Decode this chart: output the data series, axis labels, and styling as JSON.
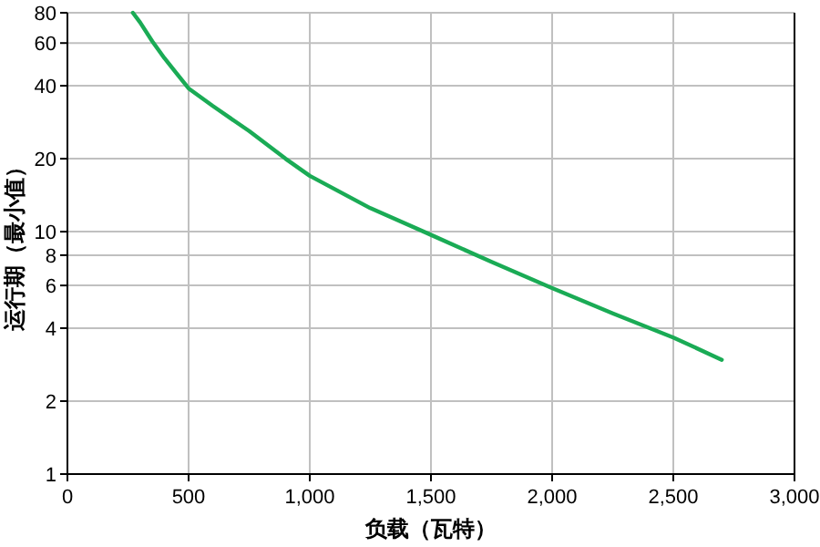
{
  "chart_data": {
    "type": "line",
    "xlabel": "负载（瓦特）",
    "ylabel": "运行期（最小值）",
    "series": [
      {
        "color": "#1aab55",
        "x": [
          270,
          300,
          350,
          400,
          450,
          500,
          600,
          750,
          900,
          1000,
          1250,
          1500,
          1750,
          2000,
          2250,
          2500,
          2700
        ],
        "values": [
          80,
          73,
          61,
          52,
          45,
          39,
          33,
          26,
          20,
          17,
          12.5,
          9.7,
          7.5,
          5.85,
          4.6,
          3.66,
          2.96
        ]
      }
    ],
    "xlim": [
      0,
      3000
    ],
    "xticks": [
      0,
      500,
      {
        "value": 1000,
        "label": "1,000"
      },
      {
        "value": 1500,
        "label": "1,500"
      },
      {
        "value": 2000,
        "label": "2,000"
      },
      {
        "value": 2500,
        "label": "2,500"
      },
      {
        "value": 3000,
        "label": "3,000"
      }
    ],
    "ylim": [
      1,
      80
    ],
    "yticks": [
      1,
      2,
      4,
      6,
      8,
      10,
      20,
      40,
      60,
      80
    ],
    "log": true,
    "grid": true,
    "marker": "none",
    "line_style": "solid"
  }
}
